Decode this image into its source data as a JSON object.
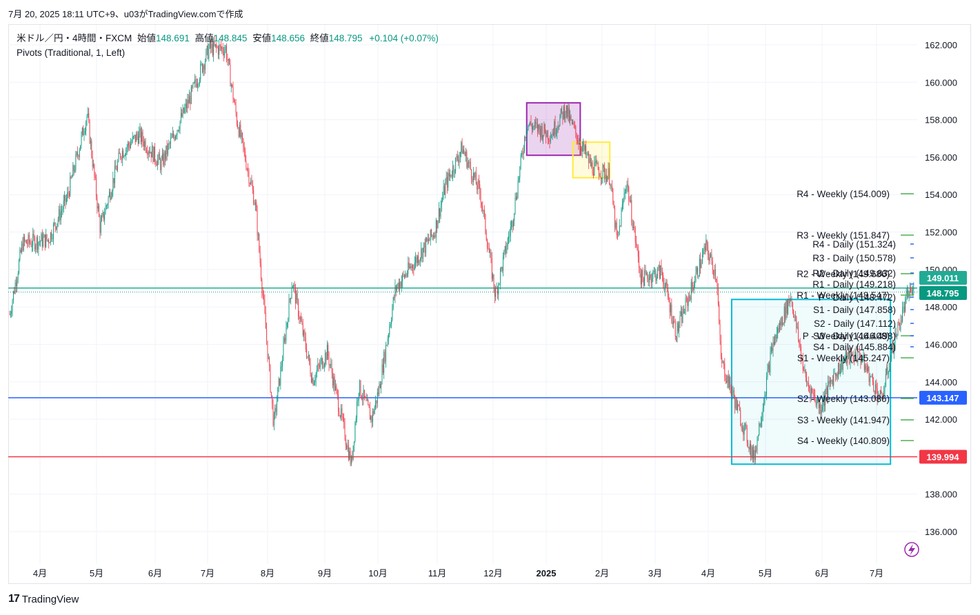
{
  "header": {
    "timestamp_line": "7月 20, 2025 18:11 UTC+9、u03がTradingView.comで作成"
  },
  "legend": {
    "symbol": "米ドル／円・4時間・FXCM",
    "open_label": "始値",
    "open": "148.691",
    "high_label": "高値",
    "high": "148.845",
    "low_label": "安値",
    "low": "148.656",
    "close_label": "終値",
    "close": "148.795",
    "change": "+0.104 (+0.07%)",
    "indicator": "Pivots (Traditional, 1, Left)"
  },
  "brand": {
    "name": "TradingView"
  },
  "colors": {
    "up": "#089981",
    "down": "#f23645",
    "teal_line": "#22ab94",
    "blue_line": "#2962ff",
    "red_line": "#f23645",
    "box_purple": "#9c27b0",
    "box_yellow": "#ffeb3b",
    "box_cyan": "#00bcd4",
    "pivot_weekly": "#4caf50",
    "pivot_daily": "#2962ff"
  },
  "chart_data": {
    "type": "candlestick",
    "instrument": "USD/JPY",
    "timeframe": "4H",
    "y_ticks": [
      "162.000",
      "160.000",
      "158.000",
      "156.000",
      "154.000",
      "152.000",
      "150.000",
      "148.000",
      "146.000",
      "144.000",
      "142.000",
      "140.000",
      "138.000",
      "136.000"
    ],
    "ylim": [
      134.8,
      163.2
    ],
    "x_ticks": [
      "4月",
      "5月",
      "6月",
      "7月",
      "8月",
      "9月",
      "10月",
      "11月",
      "12月",
      "2025",
      "2月",
      "3月",
      "4月",
      "5月",
      "6月",
      "7月"
    ],
    "price_path": [
      [
        "2024-03-15",
        147.6
      ],
      [
        "2024-03-22",
        151.4
      ],
      [
        "2024-04-05",
        151.6
      ],
      [
        "2024-04-15",
        153.8
      ],
      [
        "2024-04-26",
        158.3
      ],
      [
        "2024-05-03",
        152.2
      ],
      [
        "2024-05-14",
        156.2
      ],
      [
        "2024-05-24",
        157.2
      ],
      [
        "2024-06-05",
        155.6
      ],
      [
        "2024-06-20",
        159.0
      ],
      [
        "2024-07-01",
        161.8
      ],
      [
        "2024-07-10",
        161.8
      ],
      [
        "2024-07-16",
        158.0
      ],
      [
        "2024-07-26",
        153.5
      ],
      [
        "2024-08-05",
        141.7
      ],
      [
        "2024-08-15",
        149.4
      ],
      [
        "2024-08-26",
        144.1
      ],
      [
        "2024-09-03",
        145.6
      ],
      [
        "2024-09-16",
        139.6
      ],
      [
        "2024-09-20",
        143.8
      ],
      [
        "2024-09-27",
        142.0
      ],
      [
        "2024-10-01",
        143.6
      ],
      [
        "2024-10-10",
        149.0
      ],
      [
        "2024-10-21",
        150.5
      ],
      [
        "2024-10-31",
        152.0
      ],
      [
        "2024-11-06",
        154.5
      ],
      [
        "2024-11-15",
        156.5
      ],
      [
        "2024-11-25",
        154.0
      ],
      [
        "2024-12-03",
        148.6
      ],
      [
        "2024-12-12",
        152.5
      ],
      [
        "2024-12-20",
        157.8
      ],
      [
        "2025-01-02",
        157.2
      ],
      [
        "2025-01-10",
        158.6
      ],
      [
        "2025-01-13",
        157.8
      ],
      [
        "2025-01-24",
        155.5
      ],
      [
        "2025-02-03",
        155.0
      ],
      [
        "2025-02-07",
        151.4
      ],
      [
        "2025-02-12",
        154.8
      ],
      [
        "2025-02-20",
        149.5
      ],
      [
        "2025-03-03",
        149.9
      ],
      [
        "2025-03-11",
        146.6
      ],
      [
        "2025-03-27",
        151.2
      ],
      [
        "2025-04-02",
        149.6
      ],
      [
        "2025-04-04",
        145.2
      ],
      [
        "2025-04-11",
        143.2
      ],
      [
        "2025-04-22",
        139.9
      ],
      [
        "2025-05-02",
        145.9
      ],
      [
        "2025-05-12",
        148.6
      ],
      [
        "2025-05-20",
        144.1
      ],
      [
        "2025-05-28",
        142.6
      ],
      [
        "2025-06-04",
        144.3
      ],
      [
        "2025-06-10",
        145.2
      ],
      [
        "2025-06-18",
        145.5
      ],
      [
        "2025-06-30",
        143.0
      ],
      [
        "2025-07-07",
        146.2
      ],
      [
        "2025-07-15",
        148.8
      ],
      [
        "2025-07-18",
        148.795
      ]
    ],
    "horizontal_lines": [
      {
        "price": 149.011,
        "label": "149.011",
        "color": "#22ab94"
      },
      {
        "price": 143.147,
        "label": "143.147",
        "color": "#2962ff"
      },
      {
        "price": 139.994,
        "label": "139.994",
        "color": "#f23645"
      }
    ],
    "last_price": {
      "price": 148.795,
      "label": "148.795"
    },
    "boxes": [
      {
        "name": "purple-box",
        "x1": "2024-12-20",
        "x2": "2025-01-18",
        "y1": 156.1,
        "y2": 158.9,
        "color": "#9c27b0"
      },
      {
        "name": "yellow-box",
        "x1": "2025-01-14",
        "x2": "2025-02-03",
        "y1": 154.9,
        "y2": 156.8,
        "color": "#ffeb3b"
      },
      {
        "name": "cyan-box",
        "x1": "2025-04-10",
        "x2": "2025-07-05",
        "y1": 139.6,
        "y2": 148.4,
        "color": "#00bcd4"
      }
    ],
    "pivots_weekly": [
      {
        "label": "R4 - Weekly (154.009)",
        "price": 154.009
      },
      {
        "label": "R3 - Weekly (151.847)",
        "price": 151.847
      },
      {
        "label": "R2 - Weekly (149.686)",
        "price": 149.686
      },
      {
        "label": "R1 - Weekly (148.547)",
        "price": 148.547
      },
      {
        "label": "P - Weekly (146.408)",
        "price": 146.408
      },
      {
        "label": "S1 - Weekly (145.247)",
        "price": 145.247
      },
      {
        "label": "S2 - Weekly (143.086)",
        "price": 143.086
      },
      {
        "label": "S3 - Weekly (141.947)",
        "price": 141.947
      },
      {
        "label": "S4 - Weekly (140.809)",
        "price": 140.809
      }
    ],
    "pivots_daily": [
      {
        "label": "R4 - Daily (151.324)",
        "price": 151.324
      },
      {
        "label": "R3 - Daily (150.578)",
        "price": 150.578
      },
      {
        "label": "R2 - Daily (149.832)",
        "price": 149.832
      },
      {
        "label": "R1 - Daily (149.218)",
        "price": 149.218
      },
      {
        "label": "P - Daily (148.472)",
        "price": 148.472
      },
      {
        "label": "S1 - Daily (147.858)",
        "price": 147.858
      },
      {
        "label": "S2 - Daily (147.112)",
        "price": 147.112
      },
      {
        "label": "S3 - Daily (146.498)",
        "price": 146.498
      },
      {
        "label": "S4 - Daily (145.884)",
        "price": 145.884
      }
    ]
  }
}
